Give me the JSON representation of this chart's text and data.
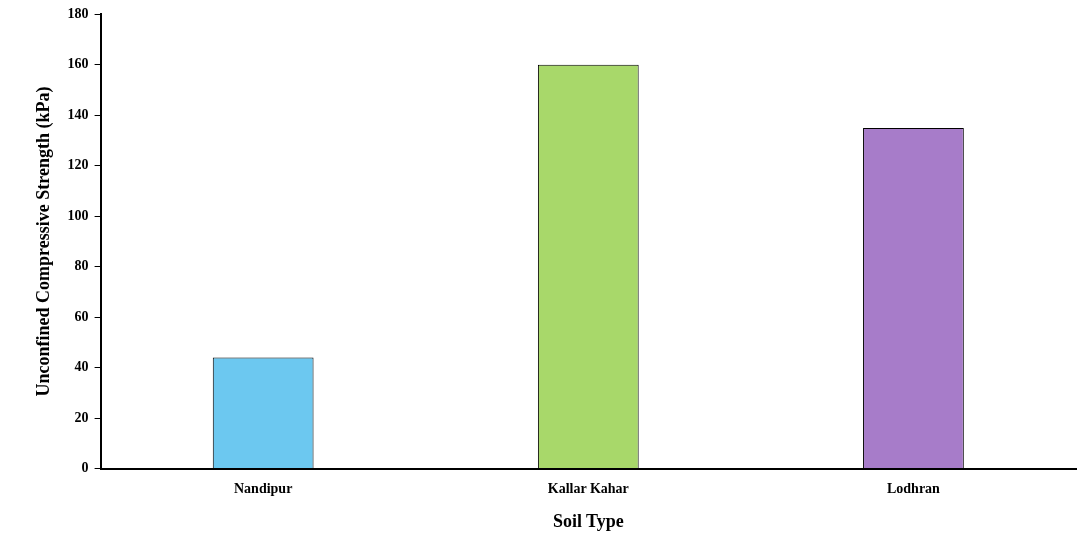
{
  "chart_data": {
    "type": "bar",
    "xlabel": "Soil Type",
    "ylabel": "Unconfined Compressive Strength (kPa)",
    "categories": [
      "Nandipur",
      "Kallar Kahar",
      "Lodhran"
    ],
    "values": [
      44,
      160,
      135
    ],
    "colors": [
      "#6cc8f0",
      "#a8d86a",
      "#a77cc9"
    ],
    "ylim": [
      0,
      180
    ],
    "yticks": [
      0,
      20,
      40,
      60,
      80,
      100,
      120,
      140,
      160,
      180
    ],
    "grid": false,
    "legend": false
  }
}
